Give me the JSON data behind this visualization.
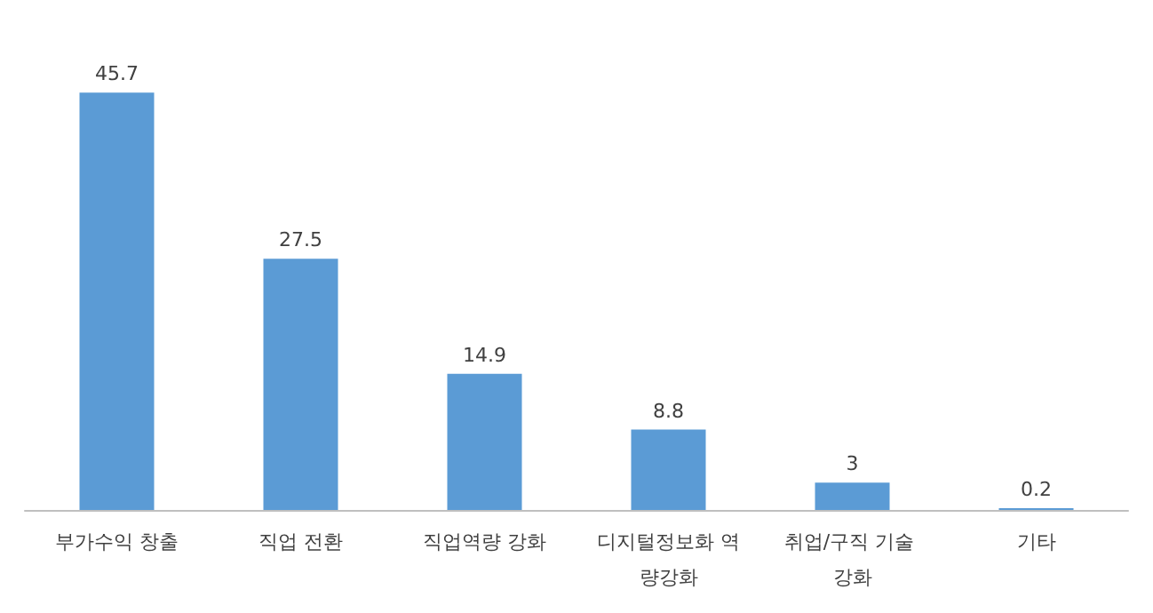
{
  "chart_data": {
    "type": "bar",
    "categories": [
      "부가수익 창출",
      "직업 전환",
      "직업역량 강화",
      "디지털정보화 역량강화",
      "취업/구직 기술 강화",
      "기타"
    ],
    "values": [
      45.7,
      27.5,
      14.9,
      8.8,
      3,
      0.2
    ],
    "color": "#5b9bd5",
    "data_labels": true
  }
}
